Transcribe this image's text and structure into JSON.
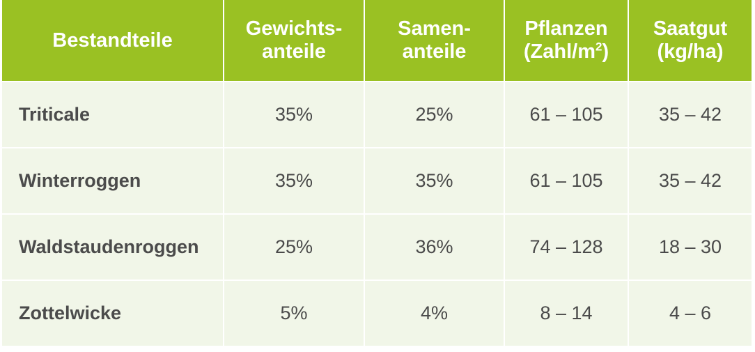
{
  "header": {
    "col1": "Bestandteile",
    "col2_line1": "Gewichts-",
    "col2_line2": "anteile",
    "col3_line1": "Samen-",
    "col3_line2": "anteile",
    "col4_line1": "Pflanzen",
    "col4_line2_pre": "(Zahl/m",
    "col4_sup": "2",
    "col4_line2_post": ")",
    "col5_line1": "Saatgut",
    "col5_line2": "(kg/ha)"
  },
  "rows": [
    {
      "name": "Triticale",
      "gewicht": "35%",
      "samen": "25%",
      "pflanzen": "61 – 105",
      "saatgut": "35 – 42"
    },
    {
      "name": "Winterroggen",
      "gewicht": "35%",
      "samen": "35%",
      "pflanzen": "61 – 105",
      "saatgut": "35 – 42"
    },
    {
      "name": "Waldstaudenroggen",
      "gewicht": "25%",
      "samen": "36%",
      "pflanzen": "74 – 128",
      "saatgut": "18 – 30"
    },
    {
      "name": "Zottelwicke",
      "gewicht": "5%",
      "samen": "4%",
      "pflanzen": "8 – 14",
      "saatgut": "4 – 6"
    }
  ],
  "colors": {
    "header_bg": "#9ac123",
    "row_bg": "#f1f6e8",
    "text": "#4a4a4a"
  }
}
